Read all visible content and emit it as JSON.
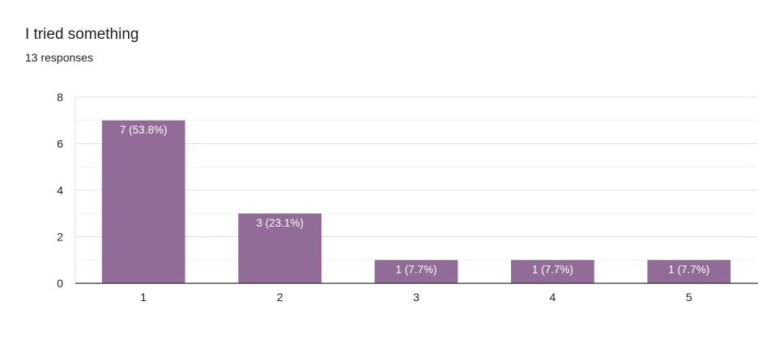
{
  "header": {
    "title": "I tried something",
    "subtitle": "13 responses"
  },
  "colors": {
    "bar": "#916c97",
    "axis": "#333333",
    "grid_major": "#e0e0e0",
    "grid_minor": "#f1f1f1",
    "label_text": "#ffffff",
    "tick_text": "#222222"
  },
  "chart_data": {
    "type": "bar",
    "title": "I tried something",
    "subtitle": "13 responses",
    "xlabel": "",
    "ylabel": "",
    "categories": [
      "1",
      "2",
      "3",
      "4",
      "5"
    ],
    "values": [
      7,
      3,
      1,
      1,
      1
    ],
    "data_labels": [
      "7 (53.8%)",
      "3 (23.1%)",
      "1 (7.7%)",
      "1 (7.7%)",
      "1 (7.7%)"
    ],
    "ylim": [
      0,
      8
    ],
    "yticks": [
      0,
      2,
      4,
      6,
      8
    ],
    "grid": true,
    "legend": "none"
  }
}
